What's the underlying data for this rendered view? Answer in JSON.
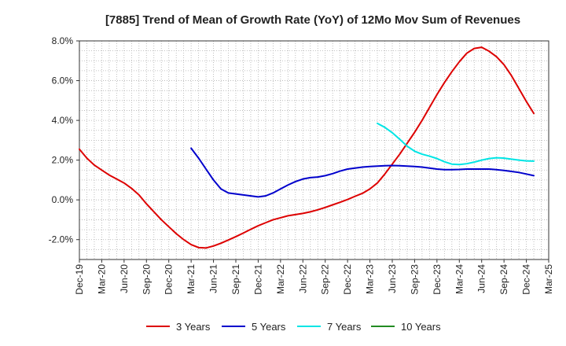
{
  "chart_data": {
    "type": "line",
    "title": "[7885]  Trend of Mean of Growth Rate (YoY) of 12Mo Mov Sum of Revenues",
    "xlabel": "",
    "ylabel": "",
    "ylim": [
      -3.0,
      8.0
    ],
    "y_ticks": [
      -2.0,
      0.0,
      2.0,
      4.0,
      6.0,
      8.0
    ],
    "y_tick_labels": [
      "-2.0%",
      "0.0%",
      "2.0%",
      "4.0%",
      "6.0%",
      "8.0%"
    ],
    "x_ticks": [
      "Dec-19",
      "Mar-20",
      "Jun-20",
      "Sep-20",
      "Dec-20",
      "Mar-21",
      "Jun-21",
      "Sep-21",
      "Dec-21",
      "Mar-22",
      "Jun-22",
      "Sep-22",
      "Dec-22",
      "Mar-23",
      "Jun-23",
      "Sep-23",
      "Dec-23",
      "Mar-24",
      "Jun-24",
      "Sep-24",
      "Dec-24",
      "Mar-25"
    ],
    "x_unit": "months since Dec-19",
    "grid": true,
    "legend_position": "bottom",
    "series": [
      {
        "name": "3 Years",
        "color": "#dd0000",
        "points": [
          [
            0,
            2.55
          ],
          [
            1,
            2.1
          ],
          [
            2,
            1.75
          ],
          [
            3,
            1.5
          ],
          [
            4,
            1.25
          ],
          [
            5,
            1.05
          ],
          [
            6,
            0.85
          ],
          [
            7,
            0.58
          ],
          [
            8,
            0.25
          ],
          [
            9,
            -0.2
          ],
          [
            10,
            -0.6
          ],
          [
            11,
            -1.0
          ],
          [
            12,
            -1.35
          ],
          [
            13,
            -1.7
          ],
          [
            14,
            -2.0
          ],
          [
            15,
            -2.25
          ],
          [
            16,
            -2.4
          ],
          [
            17,
            -2.42
          ],
          [
            18,
            -2.32
          ],
          [
            19,
            -2.18
          ],
          [
            20,
            -2.02
          ],
          [
            21,
            -1.85
          ],
          [
            22,
            -1.67
          ],
          [
            23,
            -1.48
          ],
          [
            24,
            -1.3
          ],
          [
            25,
            -1.15
          ],
          [
            26,
            -1.0
          ],
          [
            27,
            -0.9
          ],
          [
            28,
            -0.8
          ],
          [
            29,
            -0.74
          ],
          [
            30,
            -0.68
          ],
          [
            31,
            -0.6
          ],
          [
            32,
            -0.5
          ],
          [
            33,
            -0.38
          ],
          [
            34,
            -0.25
          ],
          [
            35,
            -0.12
          ],
          [
            36,
            0.02
          ],
          [
            37,
            0.18
          ],
          [
            38,
            0.33
          ],
          [
            39,
            0.55
          ],
          [
            40,
            0.85
          ],
          [
            41,
            1.3
          ],
          [
            42,
            1.8
          ],
          [
            43,
            2.3
          ],
          [
            44,
            2.85
          ],
          [
            45,
            3.4
          ],
          [
            46,
            4.0
          ],
          [
            47,
            4.65
          ],
          [
            48,
            5.3
          ],
          [
            49,
            5.9
          ],
          [
            50,
            6.45
          ],
          [
            51,
            6.95
          ],
          [
            52,
            7.38
          ],
          [
            53,
            7.62
          ],
          [
            54,
            7.68
          ],
          [
            55,
            7.48
          ],
          [
            56,
            7.2
          ],
          [
            57,
            6.8
          ],
          [
            58,
            6.25
          ],
          [
            59,
            5.6
          ],
          [
            60,
            4.95
          ],
          [
            61,
            4.35
          ]
        ]
      },
      {
        "name": "5 Years",
        "color": "#0000cc",
        "points": [
          [
            15,
            2.6
          ],
          [
            16,
            2.1
          ],
          [
            17,
            1.55
          ],
          [
            18,
            1.0
          ],
          [
            19,
            0.55
          ],
          [
            20,
            0.35
          ],
          [
            21,
            0.3
          ],
          [
            22,
            0.25
          ],
          [
            23,
            0.2
          ],
          [
            24,
            0.15
          ],
          [
            25,
            0.2
          ],
          [
            26,
            0.35
          ],
          [
            27,
            0.55
          ],
          [
            28,
            0.75
          ],
          [
            29,
            0.92
          ],
          [
            30,
            1.05
          ],
          [
            31,
            1.12
          ],
          [
            32,
            1.15
          ],
          [
            33,
            1.22
          ],
          [
            34,
            1.32
          ],
          [
            35,
            1.45
          ],
          [
            36,
            1.55
          ],
          [
            37,
            1.6
          ],
          [
            38,
            1.65
          ],
          [
            39,
            1.68
          ],
          [
            40,
            1.7
          ],
          [
            41,
            1.72
          ],
          [
            42,
            1.73
          ],
          [
            43,
            1.72
          ],
          [
            44,
            1.7
          ],
          [
            45,
            1.68
          ],
          [
            46,
            1.65
          ],
          [
            47,
            1.6
          ],
          [
            48,
            1.55
          ],
          [
            49,
            1.52
          ],
          [
            50,
            1.52
          ],
          [
            51,
            1.53
          ],
          [
            52,
            1.55
          ],
          [
            53,
            1.55
          ],
          [
            54,
            1.55
          ],
          [
            55,
            1.55
          ],
          [
            56,
            1.52
          ],
          [
            57,
            1.48
          ],
          [
            58,
            1.43
          ],
          [
            59,
            1.38
          ],
          [
            60,
            1.3
          ],
          [
            61,
            1.22
          ]
        ]
      },
      {
        "name": "7 Years",
        "color": "#00e5e5",
        "points": [
          [
            40,
            3.85
          ],
          [
            41,
            3.65
          ],
          [
            42,
            3.38
          ],
          [
            43,
            3.05
          ],
          [
            44,
            2.7
          ],
          [
            45,
            2.45
          ],
          [
            46,
            2.3
          ],
          [
            47,
            2.2
          ],
          [
            48,
            2.08
          ],
          [
            49,
            1.92
          ],
          [
            50,
            1.8
          ],
          [
            51,
            1.78
          ],
          [
            52,
            1.82
          ],
          [
            53,
            1.9
          ],
          [
            54,
            2.0
          ],
          [
            55,
            2.08
          ],
          [
            56,
            2.12
          ],
          [
            57,
            2.1
          ],
          [
            58,
            2.05
          ],
          [
            59,
            2.0
          ],
          [
            60,
            1.96
          ],
          [
            61,
            1.95
          ]
        ]
      },
      {
        "name": "10 Years",
        "color": "#228b22",
        "points": []
      }
    ]
  }
}
